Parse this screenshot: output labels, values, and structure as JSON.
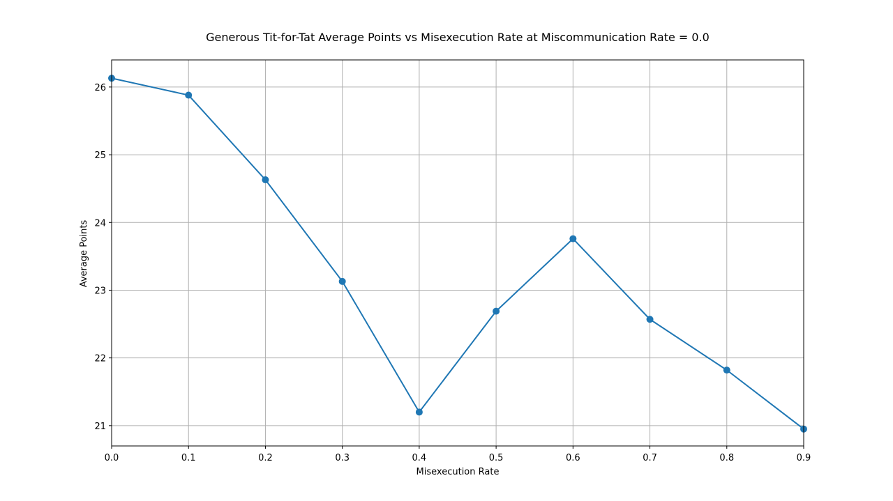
{
  "chart_data": {
    "type": "line",
    "title": "Generous Tit-for-Tat Average Points vs Misexecution Rate at Miscommunication Rate = 0.0",
    "xlabel": "Misexecution Rate",
    "ylabel": "Average Points",
    "x": [
      0.0,
      0.1,
      0.2,
      0.3,
      0.4,
      0.5,
      0.6,
      0.7,
      0.8,
      0.9
    ],
    "series": [
      {
        "values": [
          26.13,
          25.88,
          24.63,
          23.13,
          21.2,
          22.69,
          23.76,
          22.57,
          21.82,
          20.95
        ],
        "color": "#1f77b4",
        "marker": "circle"
      }
    ],
    "xlim": [
      0.0,
      0.9
    ],
    "ylim": [
      20.7,
      26.4
    ],
    "xticks": [
      "0.0",
      "0.1",
      "0.2",
      "0.3",
      "0.4",
      "0.5",
      "0.6",
      "0.7",
      "0.8",
      "0.9"
    ],
    "yticks": [
      "21",
      "22",
      "23",
      "24",
      "25",
      "26"
    ],
    "grid": true
  }
}
